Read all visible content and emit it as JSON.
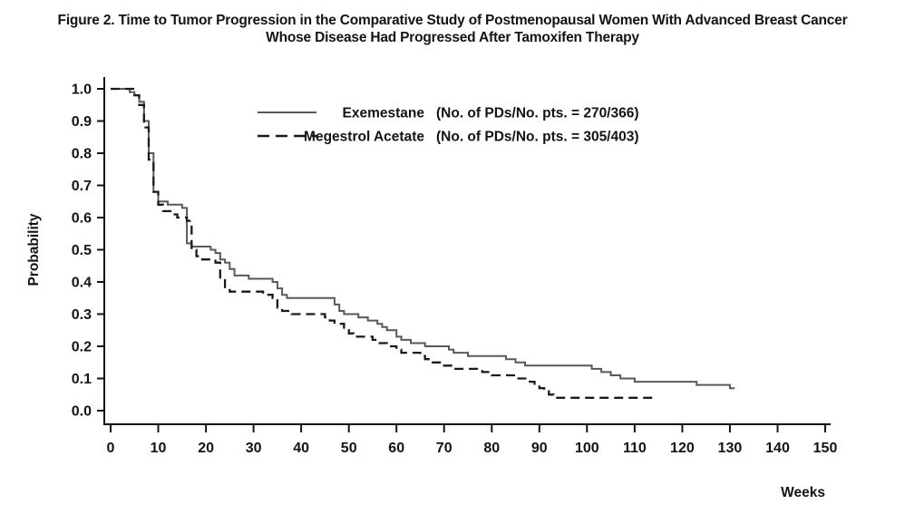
{
  "figure": {
    "title_line1": "Figure 2. Time to Tumor Progression in the Comparative Study of Postmenopausal Women With Advanced Breast Cancer",
    "title_line2": "Whose Disease Had Progressed After Tamoxifen Therapy"
  },
  "chart_data": {
    "type": "line",
    "subtype": "kaplan_meier_step",
    "title": "Figure 2. Time to Tumor Progression in the Comparative Study of Postmenopausal Women With Advanced Breast Cancer Whose Disease Had Progressed After Tamoxifen Therapy",
    "xlabel": "Weeks",
    "ylabel": "Probability",
    "xlim": [
      0,
      150
    ],
    "ylim": [
      0,
      1
    ],
    "x_ticks": [
      0,
      10,
      20,
      30,
      40,
      50,
      60,
      70,
      80,
      90,
      100,
      110,
      120,
      130,
      140,
      150
    ],
    "y_ticks": [
      0.0,
      0.1,
      0.2,
      0.3,
      0.4,
      0.5,
      0.6,
      0.7,
      0.8,
      0.9,
      1.0
    ],
    "grid": false,
    "legend_position": "inside-top-center",
    "axis_color": "#141414",
    "series": [
      {
        "name": "Exemestane",
        "annotation": "(No. of PDs/No. pts. = 270/366)",
        "line_style": "solid",
        "color": "#595959",
        "points": [
          [
            0,
            1.0
          ],
          [
            3,
            1.0
          ],
          [
            4,
            0.99
          ],
          [
            5,
            0.98
          ],
          [
            6,
            0.96
          ],
          [
            7,
            0.9
          ],
          [
            8,
            0.8
          ],
          [
            9,
            0.68
          ],
          [
            10,
            0.65
          ],
          [
            12,
            0.64
          ],
          [
            15,
            0.63
          ],
          [
            16,
            0.52
          ],
          [
            17,
            0.51
          ],
          [
            21,
            0.5
          ],
          [
            22,
            0.49
          ],
          [
            23,
            0.47
          ],
          [
            24,
            0.46
          ],
          [
            25,
            0.44
          ],
          [
            26,
            0.42
          ],
          [
            29,
            0.41
          ],
          [
            34,
            0.4
          ],
          [
            35,
            0.38
          ],
          [
            36,
            0.36
          ],
          [
            37,
            0.35
          ],
          [
            46,
            0.35
          ],
          [
            47,
            0.33
          ],
          [
            48,
            0.31
          ],
          [
            49,
            0.3
          ],
          [
            52,
            0.29
          ],
          [
            54,
            0.28
          ],
          [
            56,
            0.27
          ],
          [
            57,
            0.26
          ],
          [
            58,
            0.25
          ],
          [
            60,
            0.23
          ],
          [
            61,
            0.22
          ],
          [
            63,
            0.21
          ],
          [
            66,
            0.2
          ],
          [
            71,
            0.19
          ],
          [
            72,
            0.18
          ],
          [
            75,
            0.17
          ],
          [
            83,
            0.16
          ],
          [
            85,
            0.15
          ],
          [
            87,
            0.14
          ],
          [
            100,
            0.14
          ],
          [
            101,
            0.13
          ],
          [
            103,
            0.12
          ],
          [
            105,
            0.11
          ],
          [
            107,
            0.1
          ],
          [
            110,
            0.09
          ],
          [
            122,
            0.09
          ],
          [
            123,
            0.08
          ],
          [
            129,
            0.08
          ],
          [
            130,
            0.07
          ],
          [
            131,
            0.07
          ]
        ]
      },
      {
        "name": "Megestrol Acetate",
        "annotation": "(No. of PDs/No. pts. = 305/403)",
        "line_style": "dashed",
        "color": "#1a1a1a",
        "points": [
          [
            0,
            1.0
          ],
          [
            3,
            1.0
          ],
          [
            5,
            0.98
          ],
          [
            6,
            0.95
          ],
          [
            7,
            0.88
          ],
          [
            8,
            0.78
          ],
          [
            9,
            0.68
          ],
          [
            10,
            0.64
          ],
          [
            11,
            0.62
          ],
          [
            13,
            0.61
          ],
          [
            14,
            0.6
          ],
          [
            16,
            0.59
          ],
          [
            17,
            0.5
          ],
          [
            18,
            0.48
          ],
          [
            19,
            0.47
          ],
          [
            22,
            0.46
          ],
          [
            23,
            0.41
          ],
          [
            24,
            0.38
          ],
          [
            25,
            0.37
          ],
          [
            31,
            0.37
          ],
          [
            32,
            0.36
          ],
          [
            34,
            0.35
          ],
          [
            35,
            0.32
          ],
          [
            36,
            0.31
          ],
          [
            38,
            0.3
          ],
          [
            44,
            0.3
          ],
          [
            45,
            0.29
          ],
          [
            46,
            0.28
          ],
          [
            47,
            0.27
          ],
          [
            49,
            0.25
          ],
          [
            50,
            0.24
          ],
          [
            51,
            0.23
          ],
          [
            55,
            0.22
          ],
          [
            56,
            0.21
          ],
          [
            58,
            0.2
          ],
          [
            60,
            0.19
          ],
          [
            61,
            0.18
          ],
          [
            65,
            0.17
          ],
          [
            66,
            0.16
          ],
          [
            67,
            0.15
          ],
          [
            70,
            0.14
          ],
          [
            72,
            0.13
          ],
          [
            78,
            0.12
          ],
          [
            80,
            0.11
          ],
          [
            85,
            0.1
          ],
          [
            88,
            0.09
          ],
          [
            89,
            0.08
          ],
          [
            90,
            0.07
          ],
          [
            91,
            0.06
          ],
          [
            92,
            0.05
          ],
          [
            93,
            0.04
          ],
          [
            113,
            0.04
          ],
          [
            114,
            0.03
          ]
        ]
      }
    ]
  }
}
